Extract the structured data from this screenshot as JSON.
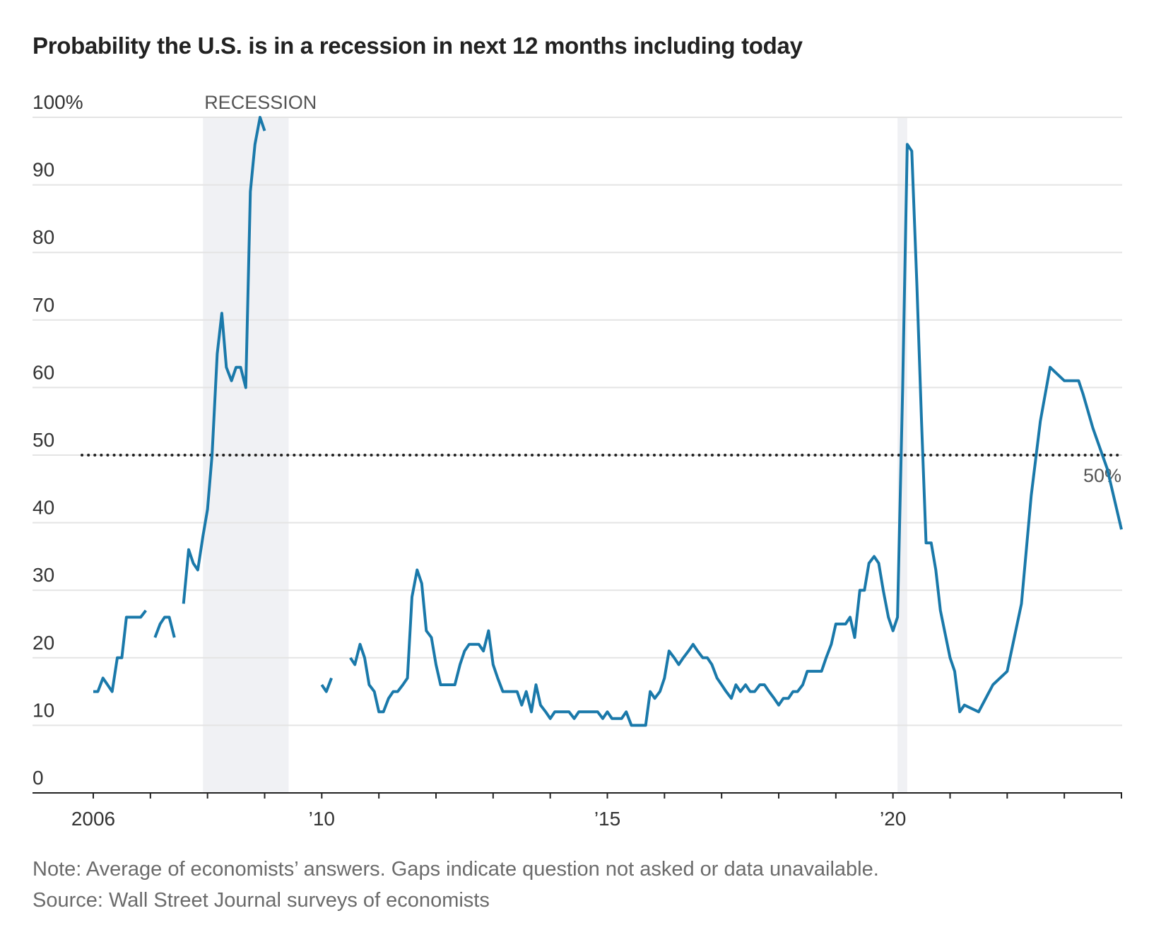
{
  "chart_data": {
    "type": "line",
    "title": "Probability the U.S. is in a recession in next 12 months including today",
    "xlabel": "",
    "ylabel": "",
    "ylim": [
      0,
      100
    ],
    "xlim": [
      2005.9,
      2024.05
    ],
    "y_ticks": [
      {
        "value": 0,
        "label": "0"
      },
      {
        "value": 10,
        "label": "10"
      },
      {
        "value": 20,
        "label": "20"
      },
      {
        "value": 30,
        "label": "30"
      },
      {
        "value": 40,
        "label": "40"
      },
      {
        "value": 50,
        "label": "50"
      },
      {
        "value": 60,
        "label": "60"
      },
      {
        "value": 70,
        "label": "70"
      },
      {
        "value": 80,
        "label": "80"
      },
      {
        "value": 90,
        "label": "90"
      },
      {
        "value": 100,
        "label": "100%"
      }
    ],
    "x_labels": [
      {
        "value": 2006,
        "label": "2006"
      },
      {
        "value": 2010,
        "label": "’10"
      },
      {
        "value": 2015,
        "label": "’15"
      },
      {
        "value": 2020,
        "label": "’20"
      }
    ],
    "x_minor_ticks": [
      2006,
      2007,
      2008,
      2009,
      2010,
      2011,
      2012,
      2013,
      2014,
      2015,
      2016,
      2017,
      2018,
      2019,
      2020,
      2021,
      2022,
      2023,
      2024
    ],
    "grid": true,
    "recession_bands": [
      {
        "start": 2007.92,
        "end": 2009.42,
        "label": "RECESSION"
      },
      {
        "start": 2020.08,
        "end": 2020.25,
        "label": ""
      }
    ],
    "reference_line": {
      "value": 50,
      "label": "50%"
    },
    "colors": {
      "line": "#1a79aa",
      "band": "#f0f1f4",
      "grid": "#e4e4e4",
      "reference": "#222222",
      "axis": "#222222"
    },
    "series": [
      {
        "segments": [
          [
            [
              2006.0,
              15
            ],
            [
              2006.08,
              15
            ],
            [
              2006.17,
              17
            ],
            [
              2006.25,
              16
            ],
            [
              2006.33,
              15
            ],
            [
              2006.42,
              20
            ],
            [
              2006.5,
              20
            ],
            [
              2006.58,
              26
            ],
            [
              2006.67,
              26
            ],
            [
              2006.75,
              26
            ],
            [
              2006.83,
              26
            ],
            [
              2006.92,
              27
            ]
          ],
          [
            [
              2007.08,
              23
            ],
            [
              2007.17,
              25
            ],
            [
              2007.25,
              26
            ],
            [
              2007.33,
              26
            ],
            [
              2007.42,
              23
            ]
          ],
          [
            [
              2007.58,
              28
            ],
            [
              2007.67,
              36
            ],
            [
              2007.75,
              34
            ],
            [
              2007.83,
              33
            ],
            [
              2007.92,
              38
            ],
            [
              2008.0,
              42
            ],
            [
              2008.08,
              50
            ],
            [
              2008.17,
              65
            ],
            [
              2008.25,
              71
            ],
            [
              2008.33,
              63
            ],
            [
              2008.42,
              61
            ],
            [
              2008.5,
              63
            ],
            [
              2008.58,
              63
            ],
            [
              2008.67,
              60
            ],
            [
              2008.75,
              89
            ],
            [
              2008.83,
              96
            ],
            [
              2008.92,
              100
            ],
            [
              2009.0,
              98
            ]
          ],
          [
            [
              2010.0,
              16
            ],
            [
              2010.08,
              15
            ],
            [
              2010.17,
              17
            ]
          ],
          [
            [
              2010.5,
              20
            ],
            [
              2010.58,
              19
            ],
            [
              2010.67,
              22
            ],
            [
              2010.75,
              20
            ],
            [
              2010.83,
              16
            ],
            [
              2010.92,
              15
            ],
            [
              2011.0,
              12
            ],
            [
              2011.08,
              12
            ],
            [
              2011.17,
              14
            ],
            [
              2011.25,
              15
            ],
            [
              2011.33,
              15
            ],
            [
              2011.42,
              16
            ],
            [
              2011.5,
              17
            ],
            [
              2011.58,
              29
            ],
            [
              2011.67,
              33
            ],
            [
              2011.75,
              31
            ],
            [
              2011.83,
              24
            ],
            [
              2011.92,
              23
            ],
            [
              2012.0,
              19
            ],
            [
              2012.08,
              16
            ],
            [
              2012.17,
              16
            ],
            [
              2012.25,
              16
            ],
            [
              2012.33,
              16
            ],
            [
              2012.42,
              19
            ],
            [
              2012.5,
              21
            ],
            [
              2012.58,
              22
            ],
            [
              2012.67,
              22
            ],
            [
              2012.75,
              22
            ],
            [
              2012.83,
              21
            ],
            [
              2012.92,
              24
            ],
            [
              2013.0,
              19
            ],
            [
              2013.08,
              17
            ],
            [
              2013.17,
              15
            ],
            [
              2013.25,
              15
            ],
            [
              2013.33,
              15
            ],
            [
              2013.42,
              15
            ],
            [
              2013.5,
              13
            ],
            [
              2013.58,
              15
            ],
            [
              2013.67,
              12
            ],
            [
              2013.75,
              16
            ],
            [
              2013.83,
              13
            ],
            [
              2013.92,
              12
            ],
            [
              2014.0,
              11
            ],
            [
              2014.08,
              12
            ],
            [
              2014.17,
              12
            ],
            [
              2014.25,
              12
            ],
            [
              2014.33,
              12
            ],
            [
              2014.42,
              11
            ],
            [
              2014.5,
              12
            ],
            [
              2014.58,
              12
            ],
            [
              2014.67,
              12
            ],
            [
              2014.75,
              12
            ],
            [
              2014.83,
              12
            ],
            [
              2014.92,
              11
            ],
            [
              2015.0,
              12
            ],
            [
              2015.08,
              11
            ],
            [
              2015.17,
              11
            ],
            [
              2015.25,
              11
            ],
            [
              2015.33,
              12
            ],
            [
              2015.42,
              10
            ],
            [
              2015.5,
              10
            ],
            [
              2015.58,
              10
            ],
            [
              2015.67,
              10
            ],
            [
              2015.75,
              15
            ],
            [
              2015.83,
              14
            ],
            [
              2015.92,
              15
            ],
            [
              2016.0,
              17
            ],
            [
              2016.08,
              21
            ],
            [
              2016.17,
              20
            ],
            [
              2016.25,
              19
            ],
            [
              2016.33,
              20
            ],
            [
              2016.42,
              21
            ],
            [
              2016.5,
              22
            ],
            [
              2016.58,
              21
            ],
            [
              2016.67,
              20
            ],
            [
              2016.75,
              20
            ],
            [
              2016.83,
              19
            ],
            [
              2016.92,
              17
            ],
            [
              2017.0,
              16
            ],
            [
              2017.08,
              15
            ],
            [
              2017.17,
              14
            ],
            [
              2017.25,
              16
            ],
            [
              2017.33,
              15
            ],
            [
              2017.42,
              16
            ],
            [
              2017.5,
              15
            ],
            [
              2017.58,
              15
            ],
            [
              2017.67,
              16
            ],
            [
              2017.75,
              16
            ],
            [
              2017.83,
              15
            ],
            [
              2017.92,
              14
            ],
            [
              2018.0,
              13
            ],
            [
              2018.08,
              14
            ],
            [
              2018.17,
              14
            ],
            [
              2018.25,
              15
            ],
            [
              2018.33,
              15
            ],
            [
              2018.42,
              16
            ],
            [
              2018.5,
              18
            ],
            [
              2018.58,
              18
            ],
            [
              2018.67,
              18
            ],
            [
              2018.75,
              18
            ],
            [
              2018.83,
              20
            ],
            [
              2018.92,
              22
            ],
            [
              2019.0,
              25
            ],
            [
              2019.08,
              25
            ],
            [
              2019.17,
              25
            ],
            [
              2019.25,
              26
            ],
            [
              2019.33,
              23
            ],
            [
              2019.42,
              30
            ],
            [
              2019.5,
              30
            ],
            [
              2019.58,
              34
            ],
            [
              2019.67,
              35
            ],
            [
              2019.75,
              34
            ],
            [
              2019.83,
              30
            ],
            [
              2019.92,
              26
            ],
            [
              2020.0,
              24
            ],
            [
              2020.08,
              26
            ],
            [
              2020.17,
              60
            ],
            [
              2020.25,
              96
            ],
            [
              2020.33,
              95
            ],
            [
              2020.42,
              75
            ],
            [
              2020.5,
              55
            ],
            [
              2020.58,
              37
            ],
            [
              2020.67,
              37
            ],
            [
              2020.75,
              33
            ],
            [
              2020.83,
              27
            ],
            [
              2021.0,
              20
            ],
            [
              2021.08,
              18
            ],
            [
              2021.17,
              12
            ],
            [
              2021.25,
              13
            ],
            [
              2021.5,
              12
            ],
            [
              2021.75,
              16
            ],
            [
              2022.0,
              18
            ],
            [
              2022.25,
              28
            ],
            [
              2022.42,
              44
            ],
            [
              2022.58,
              55
            ],
            [
              2022.75,
              63
            ],
            [
              2023.0,
              61
            ],
            [
              2023.25,
              61
            ],
            [
              2023.33,
              59
            ],
            [
              2023.5,
              54
            ],
            [
              2023.75,
              48
            ],
            [
              2024.0,
              39
            ]
          ]
        ]
      }
    ]
  },
  "notes": {
    "note": "Note: Average of economists’ answers. Gaps indicate question not asked or data unavailable.",
    "source": "Source: Wall Street Journal surveys of economists"
  }
}
